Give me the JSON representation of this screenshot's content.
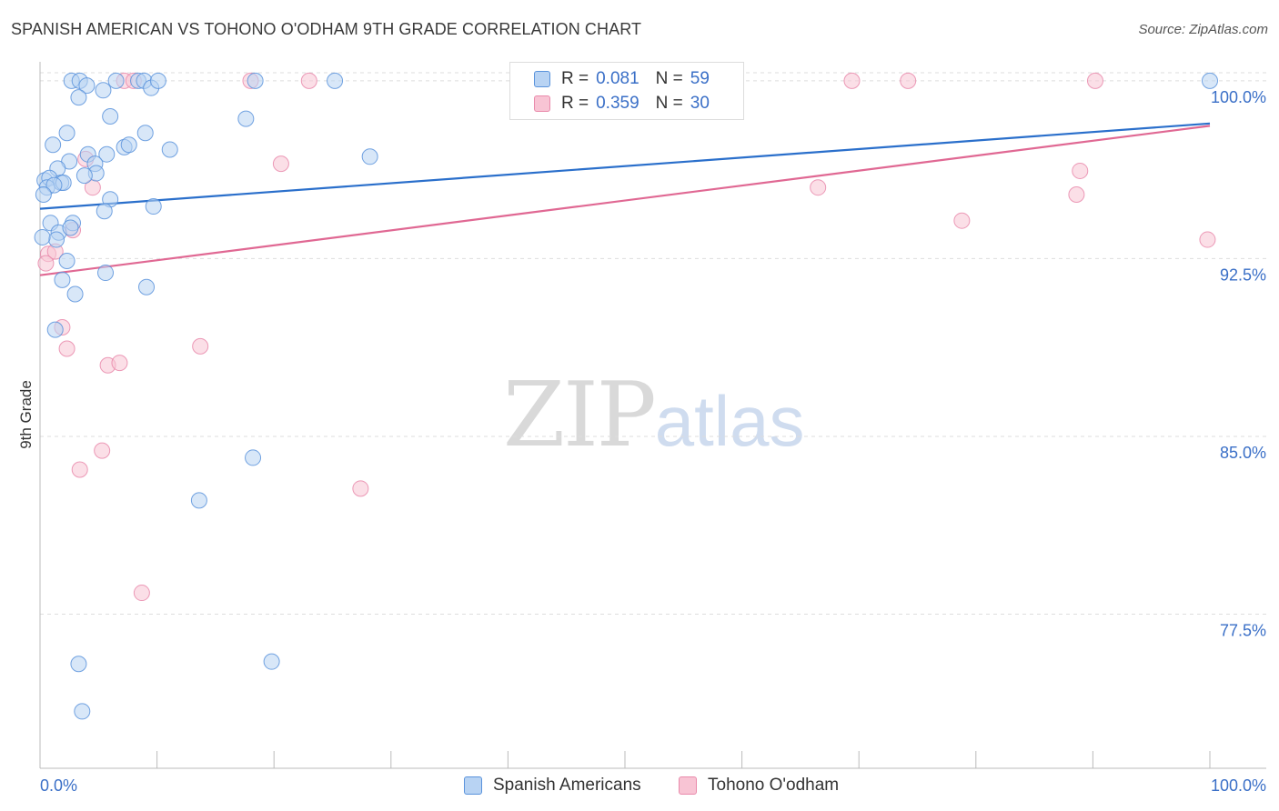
{
  "chart_data": {
    "type": "scatter",
    "title": "SPANISH AMERICAN VS TOHONO O'ODHAM 9TH GRADE CORRELATION CHART",
    "source": "Source: ZipAtlas.com",
    "xlabel": "",
    "ylabel": "9th Grade",
    "xlim": [
      0,
      100
    ],
    "ylim": [
      71.0,
      100.8
    ],
    "x_tick_labels": [
      "0.0%",
      "100.0%"
    ],
    "y_ticks": [
      77.5,
      85.0,
      92.5,
      100.0
    ],
    "y_tick_labels": [
      "77.5%",
      "85.0%",
      "92.5%",
      "100.0%"
    ],
    "grid": true,
    "legend_position": "top-center",
    "watermark": {
      "zip": "ZIP",
      "atlas": "atlas"
    },
    "colors": {
      "blue_fill": "#b8d3f3",
      "blue_edge": "#5a93dc",
      "blue_line": "#2a6fcb",
      "pink_fill": "#f8c4d4",
      "pink_edge": "#e98aab",
      "pink_line": "#e06893",
      "tick_text": "#3a6fc7",
      "grid": "#dddddd"
    },
    "series": [
      {
        "name": "Spanish Americans",
        "color": "#5a93dc",
        "R": "0.081",
        "N": "59",
        "trend": [
          [
            0,
            94.6
          ],
          [
            100,
            98.2
          ]
        ],
        "points": [
          [
            2.7,
            100
          ],
          [
            3.4,
            100
          ],
          [
            4.0,
            99.8
          ],
          [
            6.5,
            100
          ],
          [
            8.4,
            100
          ],
          [
            8.9,
            100
          ],
          [
            9.5,
            99.7
          ],
          [
            10.1,
            100
          ],
          [
            18.4,
            100
          ],
          [
            25.2,
            100
          ],
          [
            100,
            100
          ],
          [
            3.3,
            99.3
          ],
          [
            5.4,
            99.6
          ],
          [
            6.0,
            98.5
          ],
          [
            17.6,
            98.4
          ],
          [
            2.3,
            97.8
          ],
          [
            9.0,
            97.8
          ],
          [
            1.1,
            97.3
          ],
          [
            7.2,
            97.2
          ],
          [
            7.6,
            97.3
          ],
          [
            11.1,
            97.1
          ],
          [
            4.1,
            96.9
          ],
          [
            5.7,
            96.9
          ],
          [
            28.2,
            96.8
          ],
          [
            2.5,
            96.6
          ],
          [
            4.7,
            96.5
          ],
          [
            1.5,
            96.3
          ],
          [
            4.8,
            96.1
          ],
          [
            3.8,
            96.0
          ],
          [
            0.4,
            95.8
          ],
          [
            0.8,
            95.9
          ],
          [
            1.8,
            95.7
          ],
          [
            2.0,
            95.7
          ],
          [
            0.6,
            95.5
          ],
          [
            1.2,
            95.6
          ],
          [
            0.3,
            95.2
          ],
          [
            6.0,
            95.0
          ],
          [
            9.7,
            94.7
          ],
          [
            5.5,
            94.5
          ],
          [
            0.9,
            94.0
          ],
          [
            2.8,
            94.0
          ],
          [
            1.6,
            93.6
          ],
          [
            2.6,
            93.8
          ],
          [
            1.4,
            93.3
          ],
          [
            0.2,
            93.4
          ],
          [
            2.3,
            92.4
          ],
          [
            5.6,
            91.9
          ],
          [
            1.9,
            91.6
          ],
          [
            9.1,
            91.3
          ],
          [
            3.0,
            91.0
          ],
          [
            1.3,
            89.5
          ],
          [
            18.2,
            84.1
          ],
          [
            13.6,
            82.3
          ],
          [
            3.3,
            75.4
          ],
          [
            19.8,
            75.5
          ],
          [
            3.6,
            73.4
          ]
        ]
      },
      {
        "name": "Tohono O'odham",
        "color": "#e98aab",
        "R": "0.359",
        "N": "30",
        "trend": [
          [
            0,
            91.8
          ],
          [
            100,
            98.1
          ]
        ],
        "points": [
          [
            7.2,
            100
          ],
          [
            8.0,
            100
          ],
          [
            18.0,
            100
          ],
          [
            23.0,
            100
          ],
          [
            69.4,
            100
          ],
          [
            74.2,
            100
          ],
          [
            90.2,
            100
          ],
          [
            3.9,
            96.7
          ],
          [
            20.6,
            96.5
          ],
          [
            88.9,
            96.2
          ],
          [
            4.5,
            95.5
          ],
          [
            66.5,
            95.5
          ],
          [
            88.6,
            95.2
          ],
          [
            78.8,
            94.1
          ],
          [
            2.8,
            93.7
          ],
          [
            99.8,
            93.3
          ],
          [
            0.7,
            92.7
          ],
          [
            1.3,
            92.8
          ],
          [
            0.5,
            92.3
          ],
          [
            1.9,
            89.6
          ],
          [
            2.3,
            88.7
          ],
          [
            13.7,
            88.8
          ],
          [
            5.8,
            88.0
          ],
          [
            6.8,
            88.1
          ],
          [
            5.3,
            84.4
          ],
          [
            3.4,
            83.6
          ],
          [
            27.4,
            82.8
          ],
          [
            8.7,
            78.4
          ]
        ]
      }
    ]
  }
}
